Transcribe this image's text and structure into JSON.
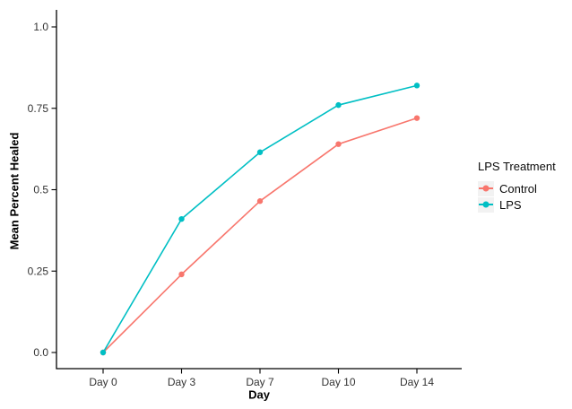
{
  "chart_data": {
    "type": "line",
    "title": "",
    "xlabel": "Day",
    "ylabel": "Mean Percent Healed",
    "categories": [
      "Day 0",
      "Day 3",
      "Day 7",
      "Day 10",
      "Day 14"
    ],
    "series": [
      {
        "name": "Control",
        "color": "#F8766D",
        "values": [
          0.0,
          0.24,
          0.465,
          0.64,
          0.72
        ]
      },
      {
        "name": "LPS",
        "color": "#00BFC4",
        "values": [
          0.0,
          0.41,
          0.615,
          0.76,
          0.82
        ]
      }
    ],
    "yticks": {
      "values": [
        0.0,
        0.25,
        0.5,
        0.75,
        1.0
      ],
      "labels": [
        "0.0",
        "0.25",
        "0.5",
        "0.75",
        "1.0"
      ]
    },
    "ylim": [
      0,
      1
    ],
    "grid": false,
    "legend": {
      "title": "LPS Treatment",
      "position": "right",
      "key_background": "#F2F2F2"
    },
    "colors": {
      "axis": "#000000",
      "tick_text": "#333333"
    }
  }
}
